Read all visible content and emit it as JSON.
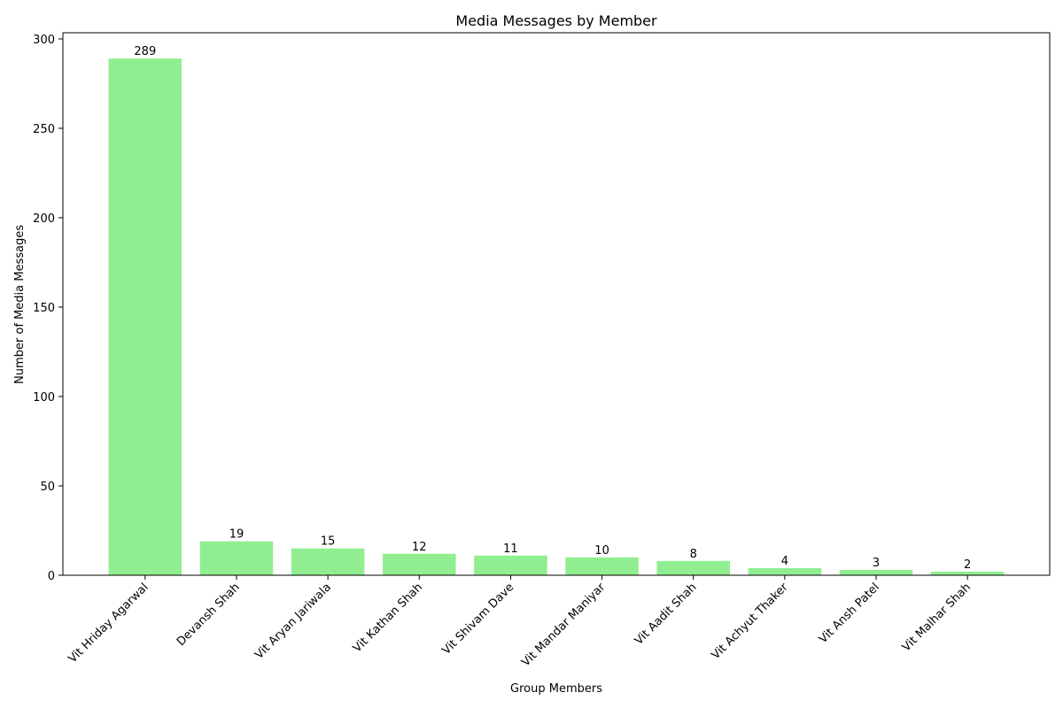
{
  "chart_data": {
    "type": "bar",
    "title": "Media Messages by Member",
    "xlabel": "Group Members",
    "ylabel": "Number of Media Messages",
    "categories": [
      "Vit Hriday Agarwal",
      "Devansh Shah",
      "Vit Aryan Jariwala",
      "Vit Kathan Shah",
      "Vit Shivam Dave",
      "Vit Mandar Maniyar",
      "Vit Aadit Shah",
      "Vit Achyut Thaker",
      "Vit Ansh Patel",
      "Vit Malhar Shah"
    ],
    "values": [
      289,
      19,
      15,
      12,
      11,
      10,
      8,
      4,
      3,
      2
    ],
    "ylim": [
      0,
      303.45
    ],
    "yticks": [
      0,
      50,
      100,
      150,
      200,
      250,
      300
    ],
    "bar_color": "#90ee90",
    "grid": false,
    "legend": "none",
    "data_labels": true,
    "xtick_rotation": 45
  }
}
